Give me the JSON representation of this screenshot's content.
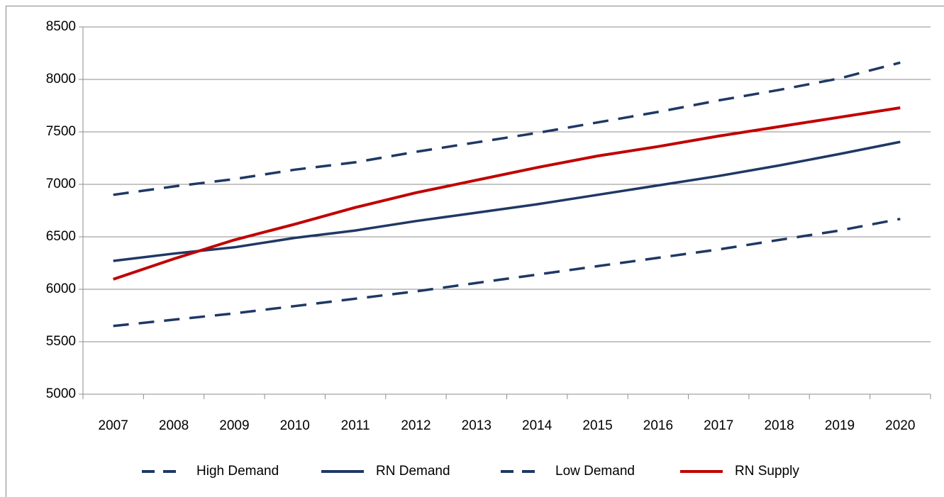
{
  "chart_data": {
    "type": "line",
    "categories": [
      "2007",
      "2008",
      "2009",
      "2010",
      "2011",
      "2012",
      "2013",
      "2014",
      "2015",
      "2016",
      "2017",
      "2018",
      "2019",
      "2020"
    ],
    "series": [
      {
        "name": "High Demand",
        "color": "#1f3864",
        "dashed": true,
        "values": [
          6900,
          6980,
          7050,
          7140,
          7210,
          7310,
          7400,
          7490,
          7590,
          7690,
          7800,
          7900,
          8010,
          8160
        ]
      },
      {
        "name": "RN Demand",
        "color": "#1f3864",
        "dashed": false,
        "values": [
          6270,
          6340,
          6400,
          6490,
          6560,
          6650,
          6730,
          6810,
          6900,
          6990,
          7080,
          7180,
          7290,
          7405
        ]
      },
      {
        "name": "Low Demand",
        "color": "#1f3864",
        "dashed": true,
        "values": [
          5650,
          5710,
          5770,
          5840,
          5910,
          5980,
          6060,
          6140,
          6220,
          6300,
          6380,
          6470,
          6560,
          6670
        ]
      },
      {
        "name": "RN Supply",
        "color": "#c00000",
        "dashed": false,
        "values": [
          6095,
          6290,
          6470,
          6620,
          6780,
          6920,
          7040,
          7160,
          7270,
          7360,
          7460,
          7550,
          7640,
          7730
        ]
      }
    ],
    "ylim": [
      5000,
      8500
    ],
    "yticks": [
      5000,
      5500,
      6000,
      6500,
      7000,
      7500,
      8000,
      8500
    ],
    "grid": true,
    "legend": "bottom"
  }
}
